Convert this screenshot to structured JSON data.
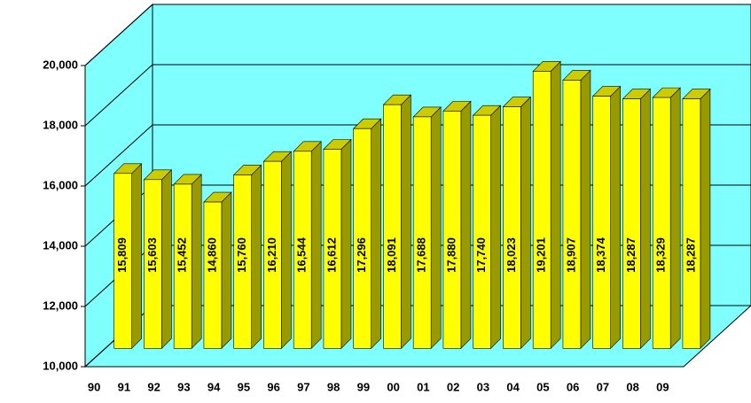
{
  "chart_data": {
    "type": "bar3d",
    "categories": [
      "90",
      "91",
      "92",
      "93",
      "94",
      "95",
      "96",
      "97",
      "98",
      "99",
      "00",
      "01",
      "02",
      "03",
      "04",
      "05",
      "06",
      "07",
      "08",
      "09"
    ],
    "values": [
      15809,
      15603,
      15452,
      14860,
      15760,
      16210,
      16544,
      16612,
      17296,
      18091,
      17688,
      17880,
      17740,
      18023,
      19201,
      18907,
      18374,
      18287,
      18329,
      18287
    ],
    "value_labels": [
      "15,809",
      "15,603",
      "15,452",
      "14,860",
      "15,760",
      "16,210",
      "16,544",
      "16,612",
      "17,296",
      "18,091",
      "17,688",
      "17,880",
      "17,740",
      "18,023",
      "19,201",
      "18,907",
      "18,374",
      "18,287",
      "18,329",
      "18,287"
    ],
    "color": "#ffff00",
    "wall_color": "#80ffff",
    "ylim": [
      10000,
      20000
    ],
    "yticks": [
      {
        "value": 10000,
        "label": "10,000"
      },
      {
        "value": 12000,
        "label": "12,000"
      },
      {
        "value": 14000,
        "label": "14,000"
      },
      {
        "value": 16000,
        "label": "16,000"
      },
      {
        "value": 18000,
        "label": "18,000"
      },
      {
        "value": 20000,
        "label": "20,000"
      }
    ],
    "grid": true
  }
}
